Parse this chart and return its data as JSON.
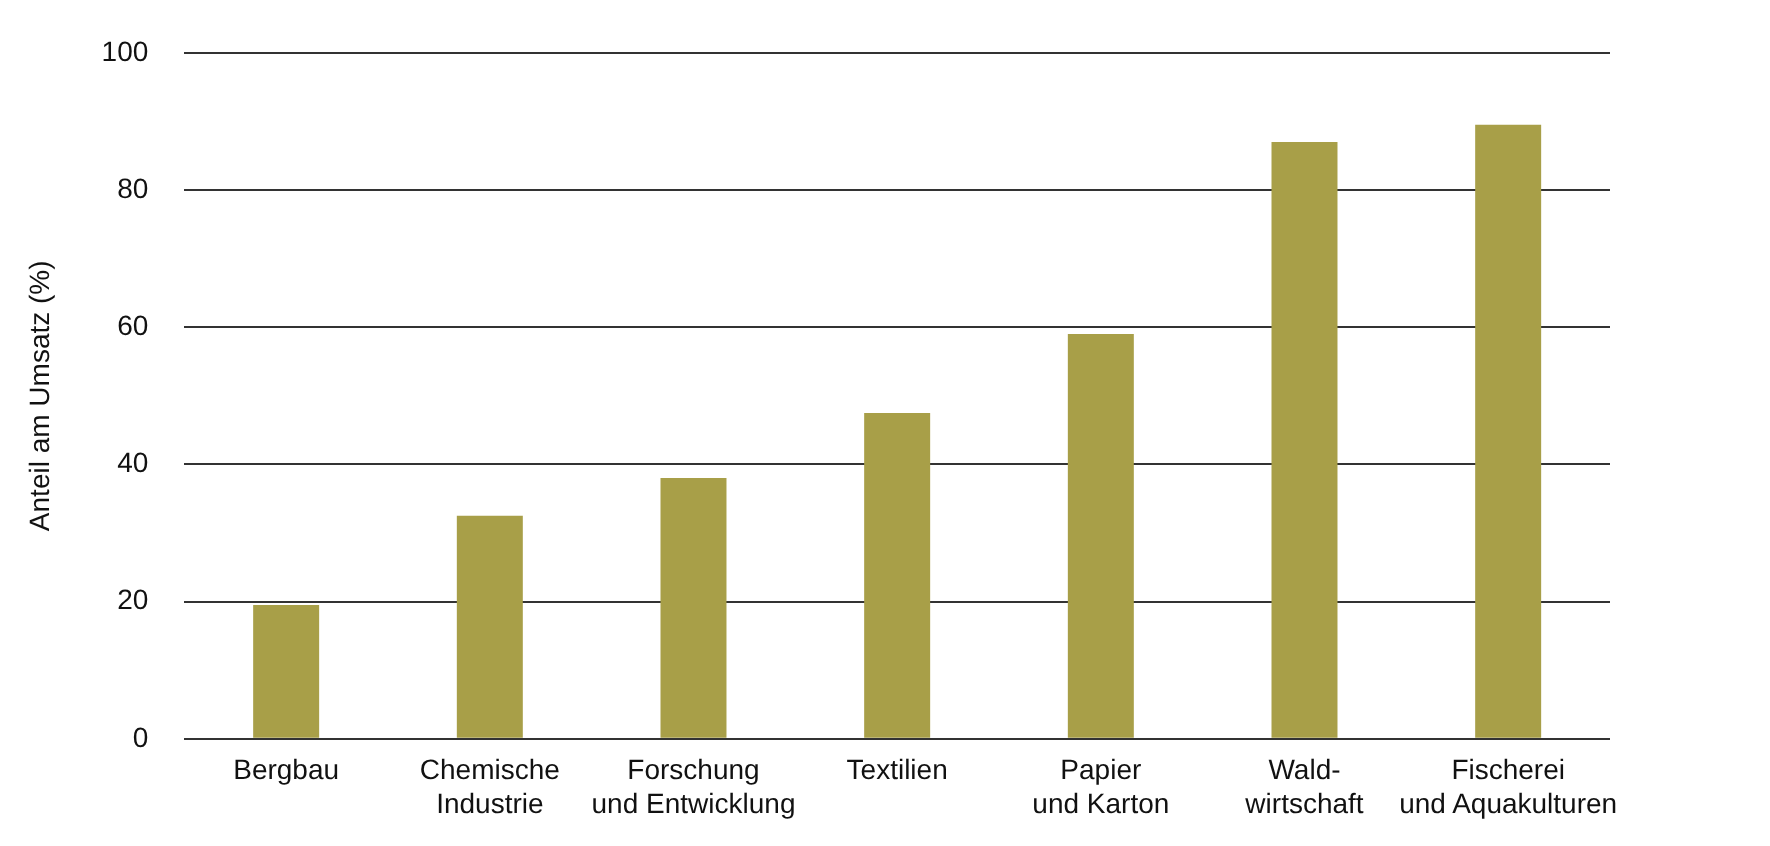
{
  "chart_data": {
    "type": "bar",
    "ylabel": "Anteil am Umsatz (%)",
    "categories": [
      "Bergbau",
      "Chemische\nIndustrie",
      "Forschung\nund Entwicklung",
      "Textilien",
      "Papier\nund Karton",
      "Wald-\nwirtschaft",
      "Fischerei\nund Aquakulturen"
    ],
    "values": [
      19.5,
      32.5,
      38,
      47.5,
      59,
      87,
      89.5
    ],
    "color": "#a89f48",
    "ylim": [
      0,
      100
    ],
    "yticks": [
      0,
      20,
      40,
      60,
      80,
      100
    ],
    "grid": "y",
    "legend": false
  }
}
